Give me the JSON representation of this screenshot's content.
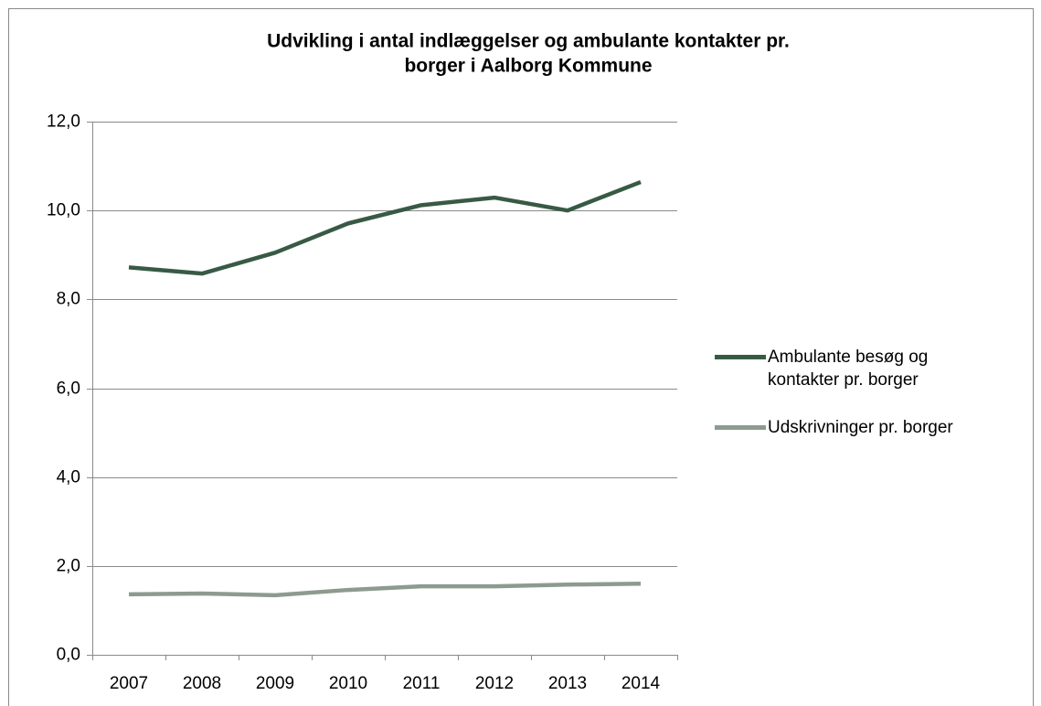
{
  "chart_data": {
    "type": "line",
    "title": [
      "Udvikling i antal indlæggelser og ambulante kontakter pr.",
      "borger i Aalborg Kommune"
    ],
    "categories": [
      "2007",
      "2008",
      "2009",
      "2010",
      "2011",
      "2012",
      "2013",
      "2014"
    ],
    "series": [
      {
        "name": "Ambulante besøg og kontakter pr. borger",
        "color": "#385a45",
        "values": [
          8.72,
          8.58,
          9.05,
          9.71,
          10.12,
          10.29,
          10.0,
          10.64
        ]
      },
      {
        "name": "Udskrivninger pr. borger",
        "color": "#8d9b8f",
        "values": [
          1.36,
          1.38,
          1.34,
          1.46,
          1.54,
          1.54,
          1.58,
          1.6
        ]
      }
    ],
    "ylim": [
      0,
      12
    ],
    "yticks": [
      {
        "value": 0,
        "label": "0,0"
      },
      {
        "value": 2,
        "label": "2,0"
      },
      {
        "value": 4,
        "label": "4,0"
      },
      {
        "value": 6,
        "label": "6,0"
      },
      {
        "value": 8,
        "label": "8,0"
      },
      {
        "value": 10,
        "label": "10,0"
      },
      {
        "value": 12,
        "label": "12,0"
      }
    ],
    "grid": true,
    "legend": "right"
  }
}
